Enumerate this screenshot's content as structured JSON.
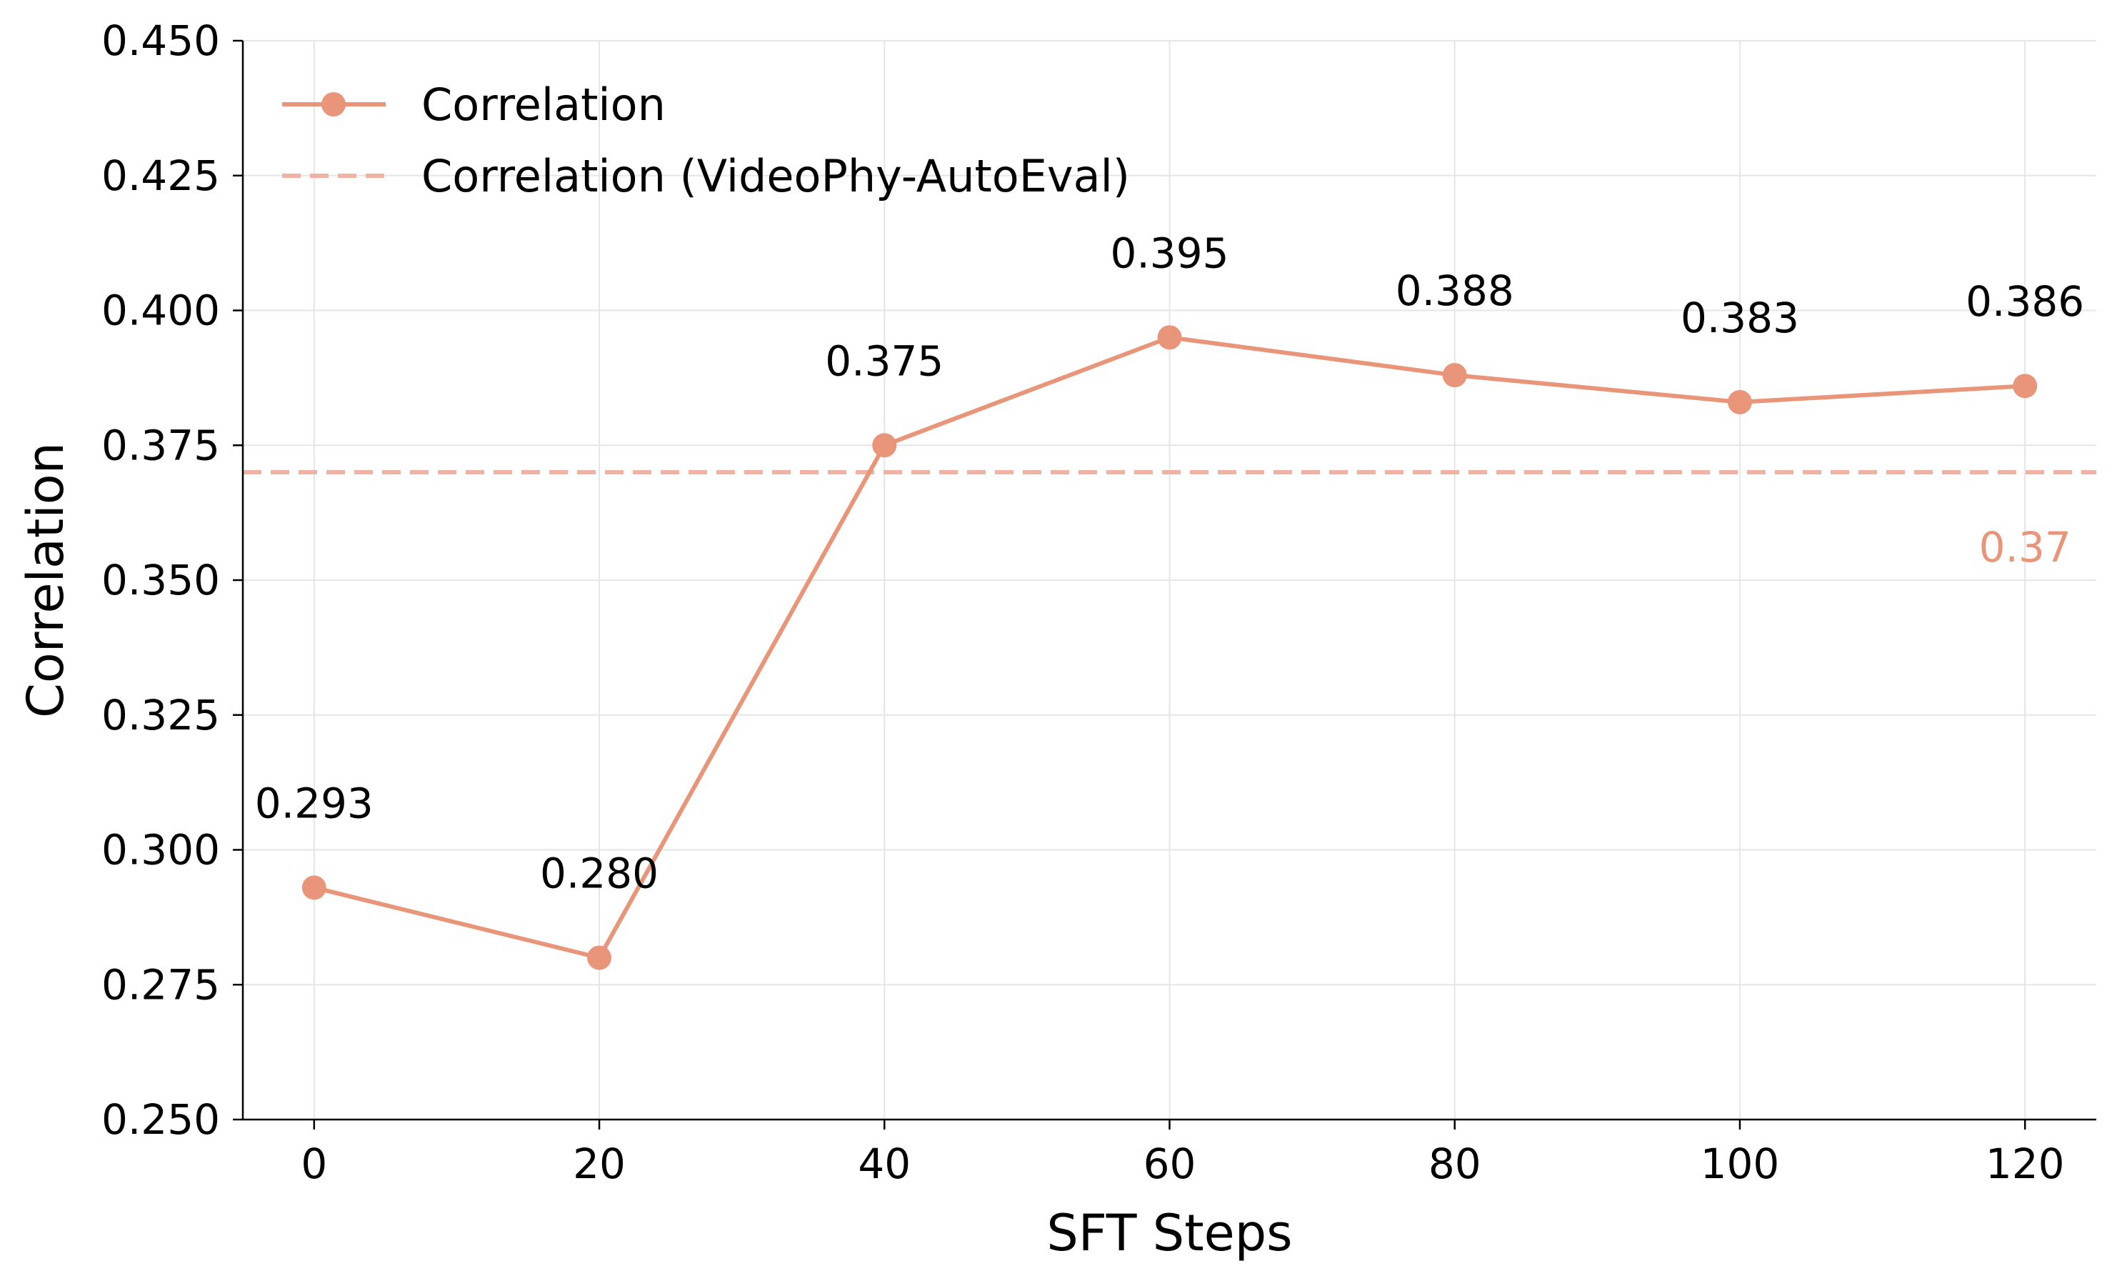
{
  "chart_data": {
    "type": "line",
    "title": "",
    "xlabel": "SFT Steps",
    "ylabel": "Correlation",
    "xlim": [
      -5,
      125
    ],
    "ylim": [
      0.25,
      0.45
    ],
    "x_ticks": [
      0,
      20,
      40,
      60,
      80,
      100,
      120
    ],
    "x_tick_labels": [
      "0",
      "20",
      "40",
      "60",
      "80",
      "100",
      "120"
    ],
    "y_ticks": [
      0.25,
      0.275,
      0.3,
      0.325,
      0.35,
      0.375,
      0.4,
      0.425,
      0.45
    ],
    "y_tick_labels": [
      "0.250",
      "0.275",
      "0.300",
      "0.325",
      "0.350",
      "0.375",
      "0.400",
      "0.425",
      "0.450"
    ],
    "grid": true,
    "legend_position": "top-left",
    "series": [
      {
        "name": "Correlation",
        "x": [
          0,
          20,
          40,
          60,
          80,
          100,
          120
        ],
        "values": [
          0.293,
          0.28,
          0.375,
          0.395,
          0.388,
          0.383,
          0.386
        ],
        "labels": [
          "0.293",
          "0.280",
          "0.375",
          "0.395",
          "0.388",
          "0.383",
          "0.386"
        ],
        "color": "#E8957A",
        "marker": "circle",
        "style": "solid"
      }
    ],
    "reference_lines": [
      {
        "name": "Correlation (VideoPhy-AutoEval)",
        "y": 0.37,
        "label": "0.37",
        "color": "#F0B3A3",
        "label_color": "#E8957A",
        "style": "dashed"
      }
    ]
  }
}
